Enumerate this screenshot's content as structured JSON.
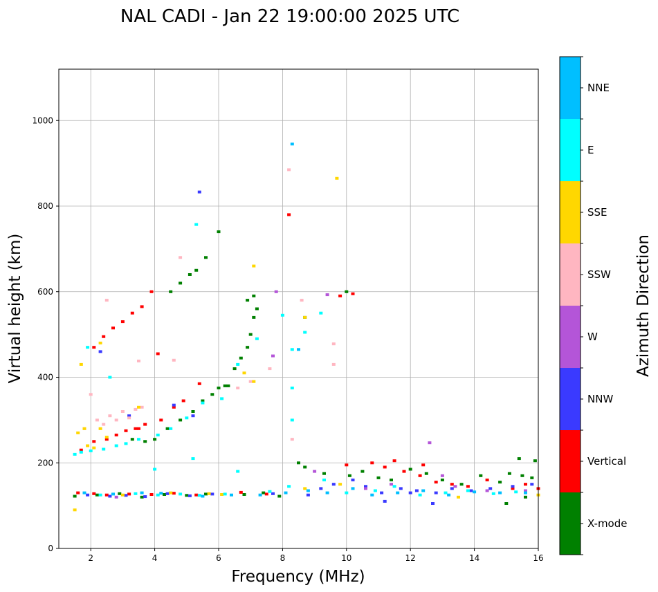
{
  "chart_data": {
    "type": "scatter",
    "title": "NAL CADI - Jan 22 19:00:00 2025 UTC",
    "xlabel": "Frequency (MHz)",
    "ylabel": "Virtual height (km)",
    "xlim": [
      1,
      16
    ],
    "ylim": [
      0,
      1120
    ],
    "xticks": [
      2,
      4,
      6,
      8,
      10,
      12,
      14,
      16
    ],
    "yticks": [
      0,
      200,
      400,
      600,
      800,
      1000
    ],
    "grid": true,
    "colorbar": {
      "label": "Azimuth Direction",
      "categories": [
        {
          "name": "X-mode",
          "color": "#008000"
        },
        {
          "name": "Vertical",
          "color": "#ff0000"
        },
        {
          "name": "NNW",
          "color": "#3a3aff"
        },
        {
          "name": "W",
          "color": "#b455d8"
        },
        {
          "name": "SSW",
          "color": "#ffb6c1"
        },
        {
          "name": "SSE",
          "color": "#ffd700"
        },
        {
          "name": "E",
          "color": "#00ffff"
        },
        {
          "name": "NNE",
          "color": "#00bfff"
        }
      ]
    },
    "series": [
      {
        "name": "X-mode",
        "points": [
          [
            1.5,
            122
          ],
          [
            2.2,
            125
          ],
          [
            2.9,
            128
          ],
          [
            3.6,
            120
          ],
          [
            4.3,
            126
          ],
          [
            5.0,
            124
          ],
          [
            5.6,
            127
          ],
          [
            6.8,
            126
          ],
          [
            7.4,
            130
          ],
          [
            7.9,
            122
          ],
          [
            3.3,
            255
          ],
          [
            3.7,
            250
          ],
          [
            4.0,
            255
          ],
          [
            4.4,
            280
          ],
          [
            4.8,
            300
          ],
          [
            5.2,
            320
          ],
          [
            5.5,
            345
          ],
          [
            5.8,
            360
          ],
          [
            6.0,
            375
          ],
          [
            6.2,
            380
          ],
          [
            6.5,
            420
          ],
          [
            6.7,
            445
          ],
          [
            6.9,
            470
          ],
          [
            7.0,
            500
          ],
          [
            7.1,
            540
          ],
          [
            7.2,
            560
          ],
          [
            4.5,
            600
          ],
          [
            4.8,
            620
          ],
          [
            5.1,
            640
          ],
          [
            5.3,
            650
          ],
          [
            5.6,
            680
          ],
          [
            6.0,
            740
          ],
          [
            6.9,
            580
          ],
          [
            7.1,
            590
          ],
          [
            8.7,
            190
          ],
          [
            9.3,
            175
          ],
          [
            10.1,
            170
          ],
          [
            10.5,
            180
          ],
          [
            11.0,
            165
          ],
          [
            11.4,
            160
          ],
          [
            12.0,
            185
          ],
          [
            12.5,
            175
          ],
          [
            13.0,
            160
          ],
          [
            13.6,
            150
          ],
          [
            14.2,
            170
          ],
          [
            14.8,
            155
          ],
          [
            15.1,
            175
          ],
          [
            15.5,
            170
          ],
          [
            15.8,
            165
          ],
          [
            15.9,
            205
          ],
          [
            15.4,
            210
          ],
          [
            15.0,
            105
          ],
          [
            8.5,
            200
          ],
          [
            8.7,
            540
          ],
          [
            10.0,
            600
          ],
          [
            15.6,
            120
          ],
          [
            6.3,
            380
          ]
        ]
      },
      {
        "name": "Vertical",
        "points": [
          [
            1.6,
            130
          ],
          [
            2.1,
            128
          ],
          [
            2.5,
            125
          ],
          [
            3.2,
            127
          ],
          [
            3.9,
            126
          ],
          [
            4.6,
            129
          ],
          [
            5.3,
            125
          ],
          [
            6.7,
            131
          ],
          [
            7.5,
            127
          ],
          [
            1.7,
            230
          ],
          [
            2.1,
            250
          ],
          [
            2.5,
            255
          ],
          [
            2.8,
            265
          ],
          [
            3.1,
            275
          ],
          [
            3.4,
            280
          ],
          [
            3.7,
            290
          ],
          [
            4.2,
            300
          ],
          [
            4.6,
            330
          ],
          [
            4.9,
            345
          ],
          [
            5.4,
            385
          ],
          [
            2.1,
            470
          ],
          [
            2.4,
            495
          ],
          [
            2.7,
            515
          ],
          [
            3.0,
            530
          ],
          [
            3.3,
            550
          ],
          [
            3.6,
            565
          ],
          [
            3.9,
            600
          ],
          [
            3.5,
            280
          ],
          [
            8.2,
            780
          ],
          [
            9.8,
            590
          ],
          [
            10.2,
            595
          ],
          [
            10.0,
            195
          ],
          [
            10.8,
            200
          ],
          [
            11.2,
            190
          ],
          [
            11.8,
            180
          ],
          [
            12.3,
            170
          ],
          [
            12.8,
            155
          ],
          [
            13.3,
            150
          ],
          [
            13.8,
            145
          ],
          [
            14.4,
            160
          ],
          [
            15.2,
            140
          ],
          [
            15.6,
            150
          ],
          [
            16.0,
            140
          ],
          [
            12.4,
            195
          ],
          [
            11.5,
            205
          ],
          [
            4.1,
            455
          ]
        ]
      },
      {
        "name": "NNW",
        "points": [
          [
            1.9,
            125
          ],
          [
            2.6,
            122
          ],
          [
            3.1,
            124
          ],
          [
            3.7,
            121
          ],
          [
            4.4,
            128
          ],
          [
            5.1,
            123
          ],
          [
            5.8,
            127
          ],
          [
            7.7,
            128
          ],
          [
            8.8,
            125
          ],
          [
            9.2,
            140
          ],
          [
            9.6,
            150
          ],
          [
            10.2,
            160
          ],
          [
            10.6,
            145
          ],
          [
            11.1,
            130
          ],
          [
            11.7,
            140
          ],
          [
            12.2,
            135
          ],
          [
            12.8,
            130
          ],
          [
            13.3,
            140
          ],
          [
            13.9,
            135
          ],
          [
            14.5,
            140
          ],
          [
            15.2,
            145
          ],
          [
            15.8,
            150
          ],
          [
            4.6,
            335
          ],
          [
            5.2,
            310
          ],
          [
            2.3,
            460
          ],
          [
            5.4,
            833
          ],
          [
            11.2,
            110
          ],
          [
            12.7,
            105
          ],
          [
            3.2,
            310
          ],
          [
            12.0,
            130
          ]
        ]
      },
      {
        "name": "W",
        "points": [
          [
            7.7,
            450
          ],
          [
            7.8,
            600
          ],
          [
            9.4,
            593
          ],
          [
            10.6,
            140
          ],
          [
            11.4,
            150
          ],
          [
            12.6,
            247
          ],
          [
            13.4,
            145
          ],
          [
            14.4,
            135
          ],
          [
            15.6,
            135
          ],
          [
            2.8,
            120
          ],
          [
            9.0,
            180
          ],
          [
            13.0,
            170
          ]
        ]
      },
      {
        "name": "SSW",
        "points": [
          [
            2.4,
            290
          ],
          [
            2.6,
            310
          ],
          [
            2.8,
            300
          ],
          [
            3.0,
            320
          ],
          [
            3.2,
            305
          ],
          [
            3.4,
            325
          ],
          [
            3.6,
            330
          ],
          [
            1.8,
            280
          ],
          [
            2.2,
            300
          ],
          [
            2.5,
            580
          ],
          [
            6.6,
            375
          ],
          [
            7.0,
            390
          ],
          [
            7.6,
            420
          ],
          [
            8.2,
            885
          ],
          [
            8.6,
            580
          ],
          [
            8.3,
            255
          ],
          [
            9.6,
            430
          ],
          [
            9.6,
            478
          ],
          [
            4.6,
            440
          ],
          [
            3.5,
            438
          ],
          [
            4.8,
            680
          ],
          [
            2.0,
            360
          ]
        ]
      },
      {
        "name": "SSE",
        "points": [
          [
            1.6,
            270
          ],
          [
            1.8,
            280
          ],
          [
            1.9,
            240
          ],
          [
            2.1,
            235
          ],
          [
            2.3,
            280
          ],
          [
            2.5,
            260
          ],
          [
            3.5,
            330
          ],
          [
            1.7,
            430
          ],
          [
            2.3,
            480
          ],
          [
            7.1,
            390
          ],
          [
            6.8,
            410
          ],
          [
            7.1,
            660
          ],
          [
            8.7,
            540
          ],
          [
            9.7,
            865
          ],
          [
            1.5,
            90
          ],
          [
            3.0,
            125
          ],
          [
            4.5,
            130
          ],
          [
            5.7,
            128
          ],
          [
            6.1,
            126
          ],
          [
            8.7,
            140
          ],
          [
            9.8,
            150
          ],
          [
            13.5,
            120
          ],
          [
            16.0,
            125
          ]
        ]
      },
      {
        "name": "E",
        "points": [
          [
            1.5,
            220
          ],
          [
            1.7,
            225
          ],
          [
            2.0,
            228
          ],
          [
            2.4,
            232
          ],
          [
            2.8,
            240
          ],
          [
            3.1,
            245
          ],
          [
            3.5,
            255
          ],
          [
            4.1,
            265
          ],
          [
            4.5,
            280
          ],
          [
            5.0,
            305
          ],
          [
            5.5,
            340
          ],
          [
            6.1,
            350
          ],
          [
            6.6,
            430
          ],
          [
            7.2,
            490
          ],
          [
            8.7,
            505
          ],
          [
            9.2,
            550
          ],
          [
            8.0,
            545
          ],
          [
            5.3,
            757
          ],
          [
            8.3,
            375
          ],
          [
            8.3,
            300
          ],
          [
            8.3,
            465
          ],
          [
            1.9,
            470
          ],
          [
            2.6,
            400
          ],
          [
            2.3,
            125
          ],
          [
            3.4,
            128
          ],
          [
            4.1,
            125
          ],
          [
            4.8,
            127
          ],
          [
            5.4,
            124
          ],
          [
            6.2,
            127
          ],
          [
            7.6,
            133
          ],
          [
            8.2,
            145
          ],
          [
            9.3,
            160
          ],
          [
            10.0,
            130
          ],
          [
            10.9,
            135
          ],
          [
            11.5,
            145
          ],
          [
            12.3,
            125
          ],
          [
            13.1,
            130
          ],
          [
            13.8,
            135
          ],
          [
            14.6,
            128
          ],
          [
            15.3,
            132
          ],
          [
            4.0,
            185
          ],
          [
            6.6,
            180
          ],
          [
            5.2,
            210
          ]
        ]
      },
      {
        "name": "NNE",
        "points": [
          [
            1.8,
            130
          ],
          [
            2.7,
            127
          ],
          [
            3.6,
            130
          ],
          [
            4.2,
            129
          ],
          [
            5.5,
            122
          ],
          [
            6.4,
            125
          ],
          [
            7.3,
            125
          ],
          [
            8.1,
            130
          ],
          [
            8.8,
            135
          ],
          [
            9.4,
            130
          ],
          [
            10.2,
            140
          ],
          [
            10.8,
            125
          ],
          [
            11.6,
            130
          ],
          [
            12.4,
            135
          ],
          [
            13.2,
            125
          ],
          [
            14.0,
            132
          ],
          [
            14.8,
            130
          ],
          [
            15.6,
            130
          ],
          [
            8.3,
            945
          ],
          [
            8.5,
            465
          ]
        ]
      }
    ]
  }
}
